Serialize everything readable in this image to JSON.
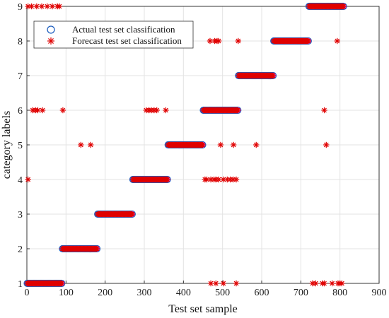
{
  "chart_data": {
    "type": "scatter",
    "xlabel": "Test set sample",
    "ylabel": "category labels",
    "xlim": [
      0,
      900
    ],
    "ylim": [
      1,
      9
    ],
    "xticks": [
      0,
      100,
      200,
      300,
      400,
      500,
      600,
      700,
      800,
      900
    ],
    "yticks": [
      1,
      2,
      3,
      4,
      5,
      6,
      7,
      8,
      9
    ],
    "grid": true,
    "legend_position": "top-left",
    "actual_color": "#1f5fbf",
    "actual_fill": "#d946c8",
    "forecast_color": "#e00000",
    "series": [
      {
        "name": "Actual test set classification",
        "marker": "circle",
        "segments": [
          {
            "x_start": 1,
            "x_end": 90,
            "y": 1
          },
          {
            "x_start": 91,
            "x_end": 180,
            "y": 2
          },
          {
            "x_start": 181,
            "x_end": 270,
            "y": 3
          },
          {
            "x_start": 271,
            "x_end": 360,
            "y": 4
          },
          {
            "x_start": 361,
            "x_end": 450,
            "y": 5
          },
          {
            "x_start": 451,
            "x_end": 540,
            "y": 6
          },
          {
            "x_start": 541,
            "x_end": 630,
            "y": 7
          },
          {
            "x_start": 631,
            "x_end": 720,
            "y": 8
          },
          {
            "x_start": 721,
            "x_end": 810,
            "y": 9
          }
        ]
      },
      {
        "name": "Forecast test set classification",
        "marker": "asterisk",
        "segments": [
          {
            "x_start": 1,
            "x_end": 90,
            "y": 1
          },
          {
            "x_start": 91,
            "x_end": 180,
            "y": 2
          },
          {
            "x_start": 181,
            "x_end": 270,
            "y": 3
          },
          {
            "x_start": 271,
            "x_end": 360,
            "y": 4
          },
          {
            "x_start": 361,
            "x_end": 450,
            "y": 5
          },
          {
            "x_start": 451,
            "x_end": 540,
            "y": 6
          },
          {
            "x_start": 541,
            "x_end": 630,
            "y": 7
          },
          {
            "x_start": 631,
            "x_end": 720,
            "y": 8
          },
          {
            "x_start": 721,
            "x_end": 810,
            "y": 9
          }
        ],
        "misclassified": [
          {
            "x": 3,
            "y": 9
          },
          {
            "x": 12,
            "y": 9
          },
          {
            "x": 25,
            "y": 9
          },
          {
            "x": 38,
            "y": 9
          },
          {
            "x": 52,
            "y": 9
          },
          {
            "x": 65,
            "y": 9
          },
          {
            "x": 78,
            "y": 9
          },
          {
            "x": 83,
            "y": 9
          },
          {
            "x": 3,
            "y": 4
          },
          {
            "x": 15,
            "y": 6
          },
          {
            "x": 22,
            "y": 6
          },
          {
            "x": 28,
            "y": 6
          },
          {
            "x": 40,
            "y": 6
          },
          {
            "x": 92,
            "y": 6
          },
          {
            "x": 138,
            "y": 5
          },
          {
            "x": 163,
            "y": 5
          },
          {
            "x": 305,
            "y": 6
          },
          {
            "x": 312,
            "y": 6
          },
          {
            "x": 318,
            "y": 6
          },
          {
            "x": 325,
            "y": 6
          },
          {
            "x": 332,
            "y": 6
          },
          {
            "x": 355,
            "y": 6
          },
          {
            "x": 455,
            "y": 4
          },
          {
            "x": 460,
            "y": 4
          },
          {
            "x": 470,
            "y": 4
          },
          {
            "x": 478,
            "y": 4
          },
          {
            "x": 483,
            "y": 4
          },
          {
            "x": 490,
            "y": 4
          },
          {
            "x": 502,
            "y": 4
          },
          {
            "x": 512,
            "y": 4
          },
          {
            "x": 520,
            "y": 4
          },
          {
            "x": 527,
            "y": 4
          },
          {
            "x": 535,
            "y": 4
          },
          {
            "x": 468,
            "y": 8
          },
          {
            "x": 480,
            "y": 8
          },
          {
            "x": 486,
            "y": 8
          },
          {
            "x": 490,
            "y": 8
          },
          {
            "x": 540,
            "y": 8
          },
          {
            "x": 495,
            "y": 5
          },
          {
            "x": 528,
            "y": 5
          },
          {
            "x": 586,
            "y": 5
          },
          {
            "x": 470,
            "y": 1
          },
          {
            "x": 483,
            "y": 1
          },
          {
            "x": 502,
            "y": 1
          },
          {
            "x": 535,
            "y": 1
          },
          {
            "x": 760,
            "y": 6
          },
          {
            "x": 765,
            "y": 5
          },
          {
            "x": 793,
            "y": 8
          },
          {
            "x": 730,
            "y": 1
          },
          {
            "x": 738,
            "y": 1
          },
          {
            "x": 755,
            "y": 1
          },
          {
            "x": 760,
            "y": 1
          },
          {
            "x": 780,
            "y": 1
          },
          {
            "x": 795,
            "y": 1
          },
          {
            "x": 800,
            "y": 1
          },
          {
            "x": 805,
            "y": 1
          }
        ]
      }
    ]
  }
}
